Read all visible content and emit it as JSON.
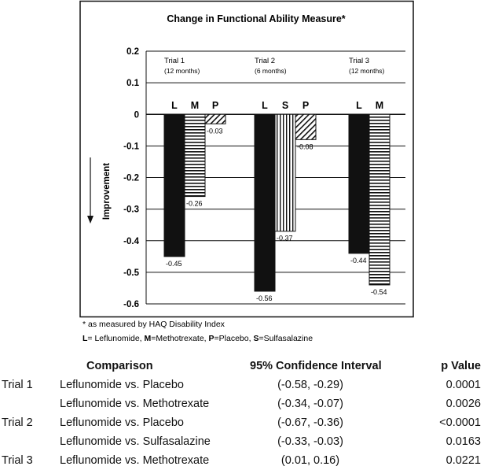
{
  "chart_data": {
    "type": "bar",
    "title": "Change in Functional Ability Measure*",
    "ylabel": "Improvement",
    "ylim": [
      -0.6,
      0.2
    ],
    "yticks": [
      0.2,
      0.1,
      0,
      -0.1,
      -0.2,
      -0.3,
      -0.4,
      -0.5,
      -0.6
    ],
    "ytick_labels": [
      "0.2",
      "0.1",
      "0",
      "-0.1",
      "-0.2",
      "-0.3",
      "-0.4",
      "-0.5",
      "-0.6"
    ],
    "grid": "horizontal",
    "groups": [
      {
        "name": "Trial 1",
        "duration": "(12 months)",
        "bars": [
          {
            "key": "L",
            "value": -0.45,
            "label": "-0.45",
            "pattern": "solid"
          },
          {
            "key": "M",
            "value": -0.26,
            "label": "-0.26",
            "pattern": "horizontal"
          },
          {
            "key": "P",
            "value": -0.03,
            "label": "-0.03",
            "pattern": "diagonal"
          }
        ]
      },
      {
        "name": "Trial 2",
        "duration": "(6 months)",
        "bars": [
          {
            "key": "L",
            "value": -0.56,
            "label": "-0.56",
            "pattern": "solid"
          },
          {
            "key": "S",
            "value": -0.37,
            "label": "-0.37",
            "pattern": "vertical"
          },
          {
            "key": "P",
            "value": -0.08,
            "label": "-0.08",
            "pattern": "diagonal"
          }
        ]
      },
      {
        "name": "Trial 3",
        "duration": "(12 months)",
        "bars": [
          {
            "key": "L",
            "value": -0.44,
            "label": "-0.44",
            "pattern": "solid"
          },
          {
            "key": "M",
            "value": -0.54,
            "label": "-0.54",
            "pattern": "horizontal"
          }
        ]
      }
    ],
    "footnote": "* as measured by HAQ Disability Index",
    "legend": [
      {
        "key": "L",
        "text": "=",
        "name": "Leflunomide"
      },
      {
        "key": "M",
        "text": "=",
        "name": "Methotrexate"
      },
      {
        "key": "P",
        "text": "=",
        "name": "Placebo"
      },
      {
        "key": "S",
        "text": "=",
        "name": "Sulfasalazine"
      }
    ]
  },
  "table": {
    "headers": {
      "comparison": "Comparison",
      "ci": "95% Confidence Interval",
      "p": "p Value"
    },
    "rows": [
      {
        "trial": "Trial 1",
        "comparison": "Leflunomide vs. Placebo",
        "ci": "(-0.58, -0.29)",
        "p": "0.0001"
      },
      {
        "trial": "",
        "comparison": "Leflunomide vs. Methotrexate",
        "ci": "(-0.34, -0.07)",
        "p": "0.0026"
      },
      {
        "trial": "Trial 2",
        "comparison": "Leflunomide vs. Placebo",
        "ci": "(-0.67, -0.36)",
        "p": "<0.0001"
      },
      {
        "trial": "",
        "comparison": "Leflunomide vs. Sulfasalazine",
        "ci": "(-0.33, -0.03)",
        "p": "0.0163"
      },
      {
        "trial": "Trial 3",
        "comparison": "Leflunomide vs. Methotrexate",
        "ci": "(0.01, 0.16)",
        "p": "0.0221"
      }
    ]
  }
}
